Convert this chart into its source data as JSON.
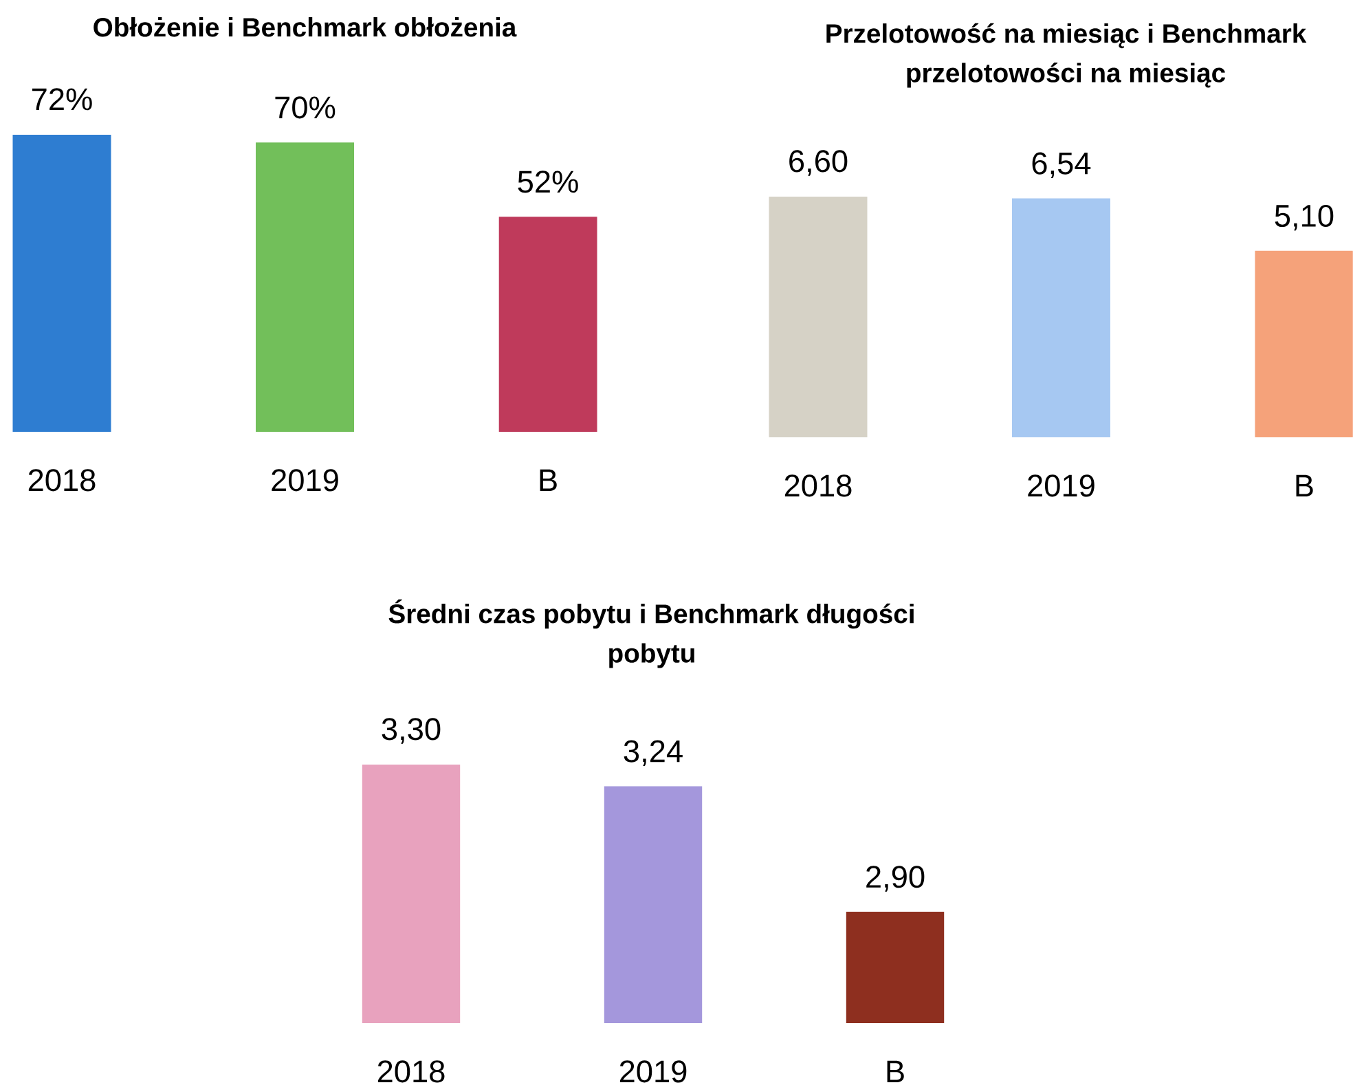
{
  "chart_data": [
    {
      "type": "bar",
      "title": "Obłożenie i Benchmark obłożenia",
      "categories": [
        "2018",
        "2019",
        "B"
      ],
      "values": [
        72,
        70,
        52
      ],
      "value_labels": [
        "72%",
        "70%",
        "52%"
      ],
      "colors": [
        "#2e7dd1",
        "#72bf5a",
        "#bf3a5b"
      ],
      "ylim": [
        0,
        72
      ],
      "tick_labels": "x"
    },
    {
      "type": "bar",
      "title": "Przelotowość na miesiąc i Benchmark przelotowości na miesiąc",
      "categories": [
        "2018",
        "2019",
        "B"
      ],
      "values": [
        6.6,
        6.54,
        5.1
      ],
      "value_labels": [
        "6,60",
        "6,54",
        "5,10"
      ],
      "colors": [
        "#d6d2c6",
        "#a6c8f2",
        "#f5a27a"
      ],
      "ylim": [
        0,
        6.6
      ],
      "tick_labels": "x"
    },
    {
      "type": "bar",
      "title": "Średni czas pobytu i Benchmark długości pobytu",
      "categories": [
        "2018",
        "2019",
        "B"
      ],
      "values": [
        3.3,
        3.24,
        2.9
      ],
      "value_labels": [
        "3,30",
        "3,24",
        "2,90"
      ],
      "colors": [
        "#e8a2be",
        "#a497dc",
        "#8e2f1f"
      ],
      "ylim": [
        2.6,
        3.3
      ],
      "tick_labels": "x"
    }
  ]
}
